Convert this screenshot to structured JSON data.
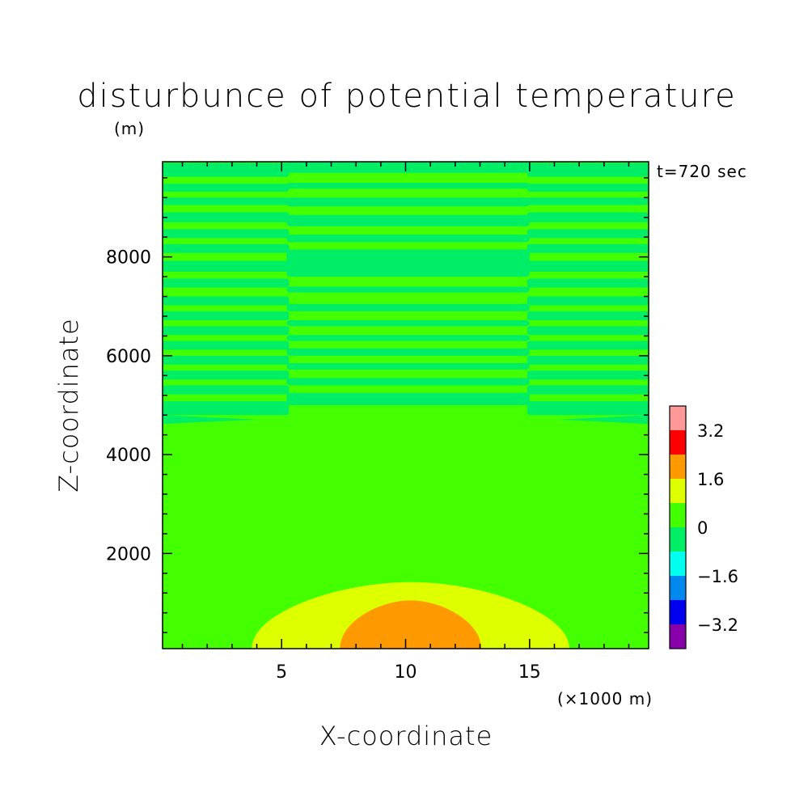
{
  "chart_data": {
    "type": "heatmap",
    "title": "disturbunce of potential temperature",
    "xlabel": "X-coordinate",
    "ylabel": "Z-coordinate",
    "x_unit": "(×1000 m)",
    "y_unit": "(m)",
    "annotation": "t=720 sec",
    "xlim": [
      0.2,
      19.8
    ],
    "ylim": [
      75,
      9925
    ],
    "x_ticks": [
      5,
      10,
      15
    ],
    "x_tick_labels": [
      "5",
      "10",
      "15"
    ],
    "x_minor_step": 1,
    "y_ticks": [
      2000,
      4000,
      6000,
      8000
    ],
    "y_tick_labels": [
      "2000",
      "4000",
      "6000",
      "8000"
    ],
    "y_minor_step": 400,
    "colorbar": {
      "levels": [
        -4.0,
        -3.2,
        -2.4,
        -1.6,
        -0.8,
        0,
        0.8,
        1.6,
        2.4,
        3.2,
        4.0
      ],
      "colors": [
        "#8800aa",
        "#0000ee",
        "#0088ee",
        "#00ffee",
        "#00ee66",
        "#44ff00",
        "#ddff00",
        "#ff9900",
        "#ff0000",
        "#ff9999"
      ],
      "labels": [
        {
          "value": -3.2,
          "text": "−3.2"
        },
        {
          "value": -1.6,
          "text": "−1.6"
        },
        {
          "value": 0,
          "text": "0"
        },
        {
          "value": 1.6,
          "text": "1.6"
        },
        {
          "value": 3.2,
          "text": "3.2"
        }
      ]
    },
    "background_color": "#44ff00",
    "regions": [
      {
        "name": "warm-bubble-outer",
        "value": 1.2,
        "color": "#ddff00",
        "center_x": 10.2,
        "base_z": 75,
        "half_width_x": 6.4,
        "top_z": 1420
      },
      {
        "name": "warm-bubble-inner",
        "value": 2.0,
        "color": "#ff9900",
        "center_x": 10.2,
        "base_z": 75,
        "half_width_x": 2.85,
        "top_z": 1050
      }
    ],
    "stripes": {
      "color": "#00ee66",
      "value": -0.4,
      "edge_bands": [
        {
          "z_top": 9900,
          "z_bottom": 9620
        },
        {
          "z_top": 9480,
          "z_bottom": 9320
        },
        {
          "z_top": 9200,
          "z_bottom": 9050
        },
        {
          "z_top": 8900,
          "z_bottom": 8700
        },
        {
          "z_top": 8560,
          "z_bottom": 8380
        },
        {
          "z_top": 8260,
          "z_bottom": 8080
        },
        {
          "z_top": 7920,
          "z_bottom": 7700
        },
        {
          "z_top": 7560,
          "z_bottom": 7380
        },
        {
          "z_top": 7200,
          "z_bottom": 7020
        },
        {
          "z_top": 6900,
          "z_bottom": 6720
        },
        {
          "z_top": 6600,
          "z_bottom": 6420
        },
        {
          "z_top": 6300,
          "z_bottom": 6120
        },
        {
          "z_top": 6000,
          "z_bottom": 5820
        },
        {
          "z_top": 5700,
          "z_bottom": 5520
        },
        {
          "z_top": 5400,
          "z_bottom": 5220
        },
        {
          "z_top": 5080,
          "z_bottom": 4800
        }
      ],
      "center_x_range": [
        5.2,
        15.0
      ],
      "center_bands": [
        {
          "z_top": 9925,
          "z_bottom": 9700
        },
        {
          "z_top": 9500,
          "z_bottom": 9380
        },
        {
          "z_top": 9200,
          "z_bottom": 9020
        },
        {
          "z_top": 8850,
          "z_bottom": 8620
        },
        {
          "z_top": 8450,
          "z_bottom": 8300
        },
        {
          "z_top": 8150,
          "z_bottom": 7600
        },
        {
          "z_top": 7400,
          "z_bottom": 7280
        },
        {
          "z_top": 7050,
          "z_bottom": 6900
        },
        {
          "z_top": 6720,
          "z_bottom": 6600
        },
        {
          "z_top": 6420,
          "z_bottom": 6300
        },
        {
          "z_top": 6150,
          "z_bottom": 6000
        },
        {
          "z_top": 5850,
          "z_bottom": 5720
        },
        {
          "z_top": 5550,
          "z_bottom": 5400
        },
        {
          "z_top": 5250,
          "z_bottom": 5000
        }
      ],
      "wedge_bands": [
        {
          "x_from": 0.2,
          "x_to": 4.0,
          "z_top": 4800,
          "z_bottom": 4620
        },
        {
          "x_from": 16.2,
          "x_to": 19.8,
          "z_top": 4800,
          "z_bottom": 4620
        }
      ]
    }
  }
}
